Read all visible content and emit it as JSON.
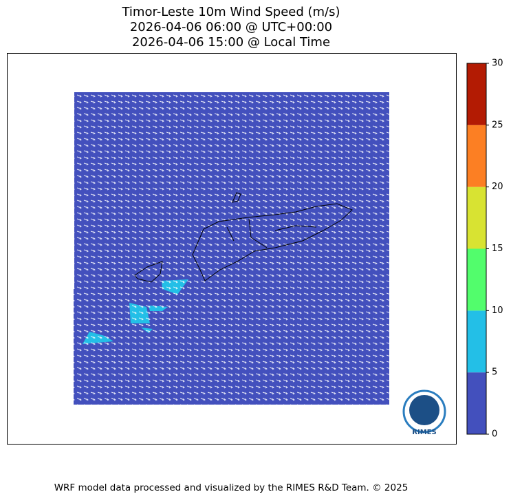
{
  "header": {
    "title_lines": [
      "Timor-Leste 10m Wind Speed (m/s)",
      "2026-04-06 06:00 @ UTC+00:00",
      "2026-04-06 15:00 @ Local Time"
    ]
  },
  "colorbar": {
    "lim": [
      0,
      30
    ],
    "ticks": [
      0,
      5,
      10,
      15,
      20,
      25,
      30
    ],
    "colors": [
      "#4350bd",
      "#23bfe7",
      "#52fd6c",
      "#d8e332",
      "#fc7f23",
      "#b31b03"
    ]
  },
  "logo": {
    "label": "RIMES"
  },
  "footer": {
    "text": "WRF model data processed and visualized by the RIMES R&D Team. © 2025"
  }
}
